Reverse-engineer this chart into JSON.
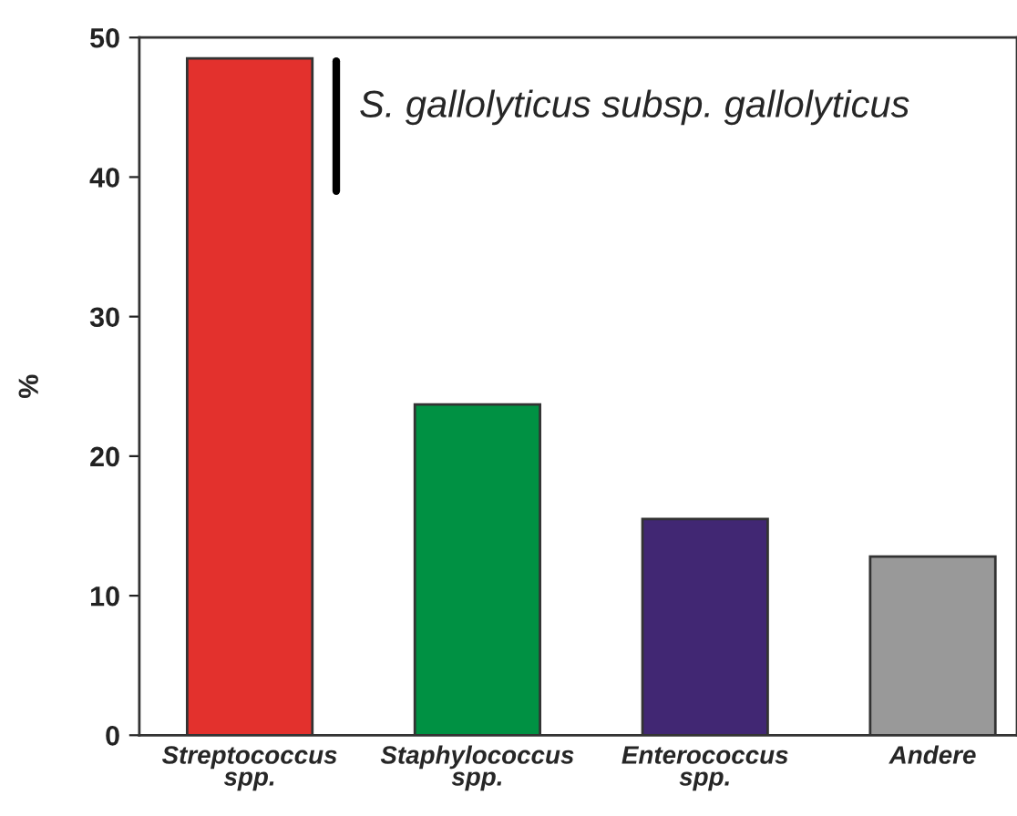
{
  "chart_data": {
    "type": "bar",
    "categories": [
      "Streptococcus spp.",
      "Staphylococcus spp.",
      "Enterococcus spp.",
      "Andere"
    ],
    "values": [
      48.5,
      23.7,
      15.5,
      12.8
    ],
    "colors": [
      "#e3312d",
      "#009143",
      "#412773",
      "#999999"
    ],
    "ylabel": "%",
    "ylim": [
      0,
      50
    ],
    "yticks": [
      0,
      10,
      20,
      30,
      40,
      50
    ],
    "grid": false,
    "annotations": [
      "S. gallolyticus subsp. gallolyticus"
    ]
  }
}
